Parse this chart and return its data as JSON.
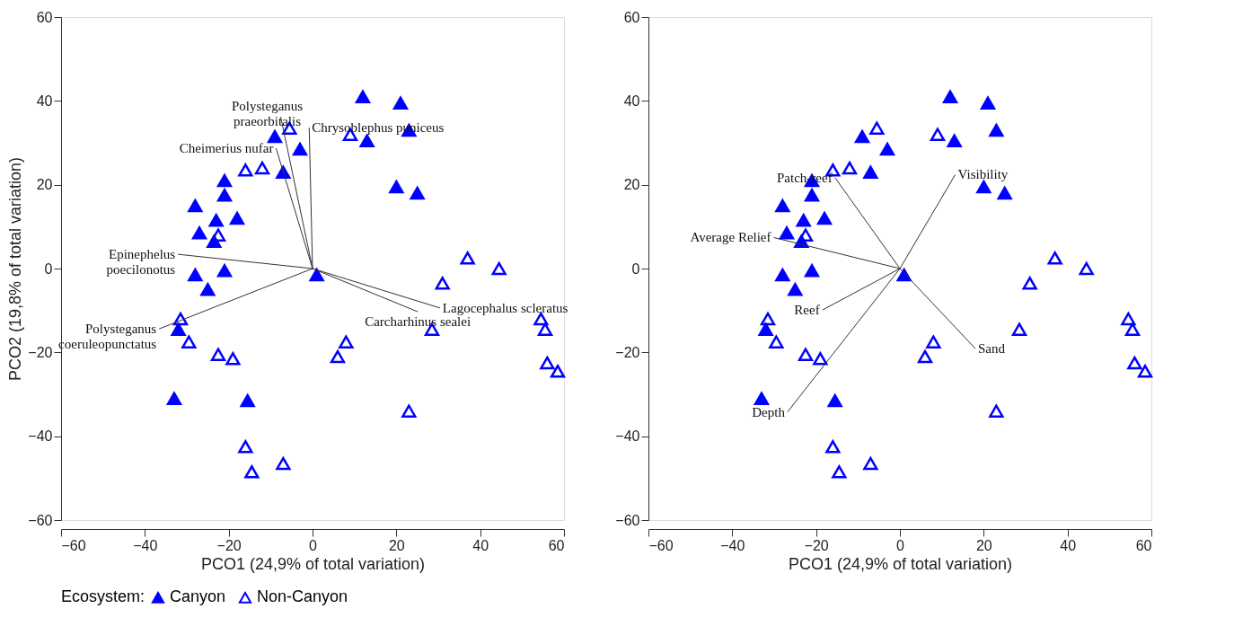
{
  "chart_data": [
    {
      "type": "scatter",
      "xlabel": "PCO1 (24,9% of total variation)",
      "ylabel": "PCO2 (19,8% of total variation)",
      "legend_title": "Ecosystem:",
      "legend": "bottom",
      "grid": false,
      "xlim": [
        -60,
        60
      ],
      "xticks": [
        -60,
        -40,
        -20,
        0,
        20,
        40,
        60
      ],
      "ylim": [
        -60,
        60
      ],
      "yticks": [
        -60,
        -40,
        -20,
        0,
        20,
        40,
        60
      ],
      "series": [
        {
          "name": "Canyon",
          "color": "#0000ff",
          "marker": "triangle",
          "x": [
            12,
            21,
            23,
            13,
            20,
            25,
            -9,
            -3,
            -7,
            -21,
            -21,
            -28,
            -23,
            -18,
            -27,
            -23.5,
            -28,
            -21,
            -25,
            1,
            -32,
            -33,
            -15.5
          ],
          "values": [
            41,
            39.5,
            33,
            30.5,
            19.5,
            18,
            31.5,
            28.5,
            23,
            21,
            17.5,
            15,
            11.5,
            12,
            8.5,
            6.5,
            -1.5,
            -0.5,
            -5,
            -1.5,
            -14.5,
            -31,
            -31.5
          ]
        },
        {
          "name": "Non-Canyon",
          "color": "#0000ff",
          "marker": "triangle",
          "x": [
            -5.5,
            9,
            -16,
            -12,
            -22.5,
            37,
            44.5,
            31,
            -31.5,
            -29.5,
            -22.5,
            -19,
            8,
            6,
            28.5,
            54.5,
            55.5,
            56,
            58.5,
            23,
            -16,
            -14.5,
            -7
          ],
          "values": [
            33.5,
            32,
            23.5,
            24,
            8,
            2.5,
            0,
            -3.5,
            -12,
            -17.5,
            -20.5,
            -21.5,
            -17.5,
            -21,
            -14.5,
            -12,
            -14.5,
            -22.5,
            -24.5,
            -34,
            -42.5,
            -48.5,
            -46.5
          ]
        },
        {
          "type": "line",
          "name": "Polysteganus\npraeorbitalis",
          "color": "#333333",
          "marker": "none",
          "x": [
            0,
            -7.6
          ],
          "values": [
            0,
            36.2
          ]
        },
        {
          "type": "line",
          "name": "Chrysoblephus puniceus",
          "color": "#333333",
          "marker": "none",
          "x": [
            0,
            -0.8
          ],
          "values": [
            0,
            33.6
          ]
        },
        {
          "type": "line",
          "name": "Cheimerius nufar",
          "color": "#333333",
          "marker": "none",
          "x": [
            0,
            -8.7
          ],
          "values": [
            0,
            28.7
          ]
        },
        {
          "type": "line",
          "name": "Epinephelus\npoecilonotus",
          "color": "#333333",
          "marker": "none",
          "x": [
            0,
            -32.1
          ],
          "values": [
            0,
            3.4
          ]
        },
        {
          "type": "line",
          "name": "Polysteganus\ncoeruleopunctatus",
          "color": "#333333",
          "marker": "none",
          "x": [
            0,
            -36.6
          ],
          "values": [
            0,
            -14.4
          ]
        },
        {
          "type": "line",
          "name": "Lagocephalus scleratus",
          "color": "#333333",
          "marker": "none",
          "x": [
            0,
            30.4
          ],
          "values": [
            0,
            -9.4
          ]
        },
        {
          "type": "line",
          "name": "Carcharhinus sealei",
          "color": "#333333",
          "marker": "none",
          "x": [
            0,
            25.1
          ],
          "values": [
            0,
            -10.3
          ]
        }
      ]
    },
    {
      "type": "scatter",
      "xlabel": "PCO1 (24,9% of total variation)",
      "grid": false,
      "xlim": [
        -60,
        60
      ],
      "xticks": [
        -60,
        -40,
        -20,
        0,
        20,
        40,
        60
      ],
      "ylim": [
        -60,
        60
      ],
      "yticks": [
        -60,
        -40,
        -20,
        0,
        20,
        40,
        60
      ],
      "series": [
        {
          "name": "Canyon",
          "color": "#0000ff",
          "marker": "triangle",
          "x": [
            12,
            21,
            23,
            13,
            20,
            25,
            -9,
            -3,
            -7,
            -21,
            -21,
            -28,
            -23,
            -18,
            -27,
            -23.5,
            -28,
            -21,
            -25,
            1,
            -32,
            -33,
            -15.5
          ],
          "values": [
            41,
            39.5,
            33,
            30.5,
            19.5,
            18,
            31.5,
            28.5,
            23,
            21,
            17.5,
            15,
            11.5,
            12,
            8.5,
            6.5,
            -1.5,
            -0.5,
            -5,
            -1.5,
            -14.5,
            -31,
            -31.5
          ]
        },
        {
          "name": "Non-Canyon",
          "color": "#0000ff",
          "marker": "triangle",
          "x": [
            -5.5,
            9,
            -16,
            -12,
            -22.5,
            37,
            44.5,
            31,
            -31.5,
            -29.5,
            -22.5,
            -19,
            8,
            6,
            28.5,
            54.5,
            55.5,
            56,
            58.5,
            23,
            -16,
            -14.5,
            -7
          ],
          "values": [
            33.5,
            32,
            23.5,
            24,
            8,
            2.5,
            0,
            -3.5,
            -12,
            -17.5,
            -20.5,
            -21.5,
            -17.5,
            -21,
            -14.5,
            -12,
            -14.5,
            -22.5,
            -24.5,
            -34,
            -42.5,
            -48.5,
            -46.5
          ]
        },
        {
          "type": "line",
          "name": "Patch-reef",
          "color": "#333333",
          "marker": "none",
          "x": [
            0,
            -15.5
          ],
          "values": [
            0,
            21.7
          ]
        },
        {
          "type": "line",
          "name": "Visibility",
          "color": "#333333",
          "marker": "none",
          "x": [
            0,
            13.2
          ],
          "values": [
            0,
            22.4
          ]
        },
        {
          "type": "line",
          "name": "Average Relief",
          "color": "#333333",
          "marker": "none",
          "x": [
            0,
            -30.1
          ],
          "values": [
            0,
            7.4
          ]
        },
        {
          "type": "line",
          "name": "Reef",
          "color": "#333333",
          "marker": "none",
          "x": [
            0,
            -18.5
          ],
          "values": [
            0,
            -9.9
          ]
        },
        {
          "type": "line",
          "name": "Depth",
          "color": "#333333",
          "marker": "none",
          "x": [
            0,
            -26.8
          ],
          "values": [
            0,
            -34.2
          ]
        },
        {
          "type": "line",
          "name": "Sand",
          "color": "#333333",
          "marker": "none",
          "x": [
            0,
            18
          ],
          "values": [
            0,
            -19.1
          ]
        }
      ]
    }
  ]
}
